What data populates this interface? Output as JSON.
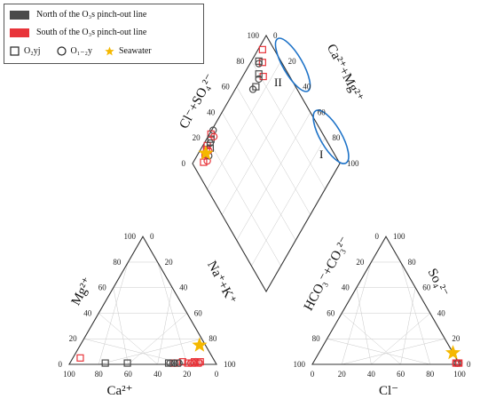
{
  "legend": {
    "north": "North of the O₃s pinch-out line",
    "south": "South of the O₃s pinch-out line",
    "sym1": "O₂yj",
    "sym2": "O₁₋₂y",
    "sym3": "Seawater",
    "north_color": "#4a4a4a",
    "south_color": "#e8343a",
    "seawater_color": "#f5b800"
  },
  "labels": {
    "ca": "Ca²⁺",
    "mg": "Mg²⁺",
    "nak": "Na⁺+K⁺",
    "cl": "Cl⁻",
    "so4": "So₄²⁻",
    "hco3": "HCO₃⁻+CO₃²⁻",
    "clso4": "Cl⁻+SO₄²⁻",
    "camg": "Ca²⁺+Mg²⁺",
    "zone1": "I",
    "zone2": "II"
  },
  "ticks": [
    "0",
    "20",
    "40",
    "60",
    "80",
    "100"
  ],
  "chart_data": [
    {
      "type": "scatter",
      "name": "cation-triangle",
      "axes": [
        "Ca²⁺",
        "Mg²⁺",
        "Na⁺+K⁺"
      ],
      "range": [
        0,
        100
      ],
      "series": [
        {
          "group": "north",
          "symbol": "square",
          "points": [
            [
              75,
              1
            ],
            [
              60,
              1
            ],
            [
              32,
              1
            ],
            [
              29,
              1
            ],
            [
              26,
              1
            ]
          ]
        },
        {
          "group": "south",
          "symbol": "square",
          "points": [
            [
              90,
              5
            ],
            [
              28,
              1
            ],
            [
              22,
              2
            ],
            [
              19,
              1
            ],
            [
              16,
              1
            ],
            [
              14,
              2
            ],
            [
              12,
              1
            ],
            [
              10,
              2
            ]
          ]
        },
        {
          "group": "north",
          "symbol": "circle",
          "points": [
            [
              31,
              1
            ],
            [
              28,
              1
            ],
            [
              25,
              1
            ]
          ]
        },
        {
          "group": "south",
          "symbol": "circle",
          "points": [
            [
              17,
              1
            ],
            [
              15,
              1
            ],
            [
              13,
              2
            ],
            [
              11,
              1
            ]
          ]
        },
        {
          "group": "seawater",
          "symbol": "star",
          "points": [
            [
              4,
              15
            ]
          ]
        }
      ]
    },
    {
      "type": "scatter",
      "name": "anion-triangle",
      "axes": [
        "Cl⁻",
        "So₄²⁻",
        "HCO₃⁻+CO₃²⁻"
      ],
      "range": [
        0,
        100
      ],
      "series": [
        {
          "group": "south",
          "symbol": "square",
          "points": [
            [
              99,
              1
            ],
            [
              98,
              1
            ],
            [
              97,
              1
            ]
          ]
        },
        {
          "group": "north",
          "symbol": "circle",
          "points": [
            [
              98,
              1
            ]
          ]
        },
        {
          "group": "south",
          "symbol": "circle",
          "points": [
            [
              99,
              1
            ],
            [
              97,
              1
            ]
          ]
        },
        {
          "group": "seawater",
          "symbol": "star",
          "points": [
            [
              91,
              9
            ]
          ]
        }
      ]
    },
    {
      "type": "scatter",
      "name": "diamond",
      "axes": [
        "Cl⁻+SO₄²⁻",
        "Ca²⁺+Mg²⁺"
      ],
      "range": [
        0,
        100
      ],
      "series": [
        {
          "group": "south",
          "symbol": "square",
          "points": [
            [
              97,
              92
            ],
            [
              92,
              87
            ],
            [
              86,
              82
            ],
            [
              99,
              24
            ],
            [
              97,
              17
            ],
            [
              95,
              12
            ],
            [
              93,
              8
            ],
            [
              96,
              15
            ]
          ]
        },
        {
          "group": "north",
          "symbol": "square",
          "points": [
            [
              95,
              85
            ],
            [
              90,
              80
            ],
            [
              87,
              73
            ],
            [
              97,
              22
            ],
            [
              94,
              18
            ]
          ]
        },
        {
          "group": "north",
          "symbol": "circle",
          "points": [
            [
              94,
              84
            ],
            [
              88,
              78
            ],
            [
              88,
              70
            ],
            [
              99,
              27
            ],
            [
              96,
              20
            ],
            [
              92,
              14
            ]
          ]
        },
        {
          "group": "south",
          "symbol": "circle",
          "points": [
            [
              96,
              25
            ],
            [
              94,
              16
            ],
            [
              91,
              11
            ]
          ]
        },
        {
          "group": "seawater",
          "symbol": "star",
          "points": [
            [
              95,
              13
            ]
          ]
        }
      ]
    }
  ]
}
